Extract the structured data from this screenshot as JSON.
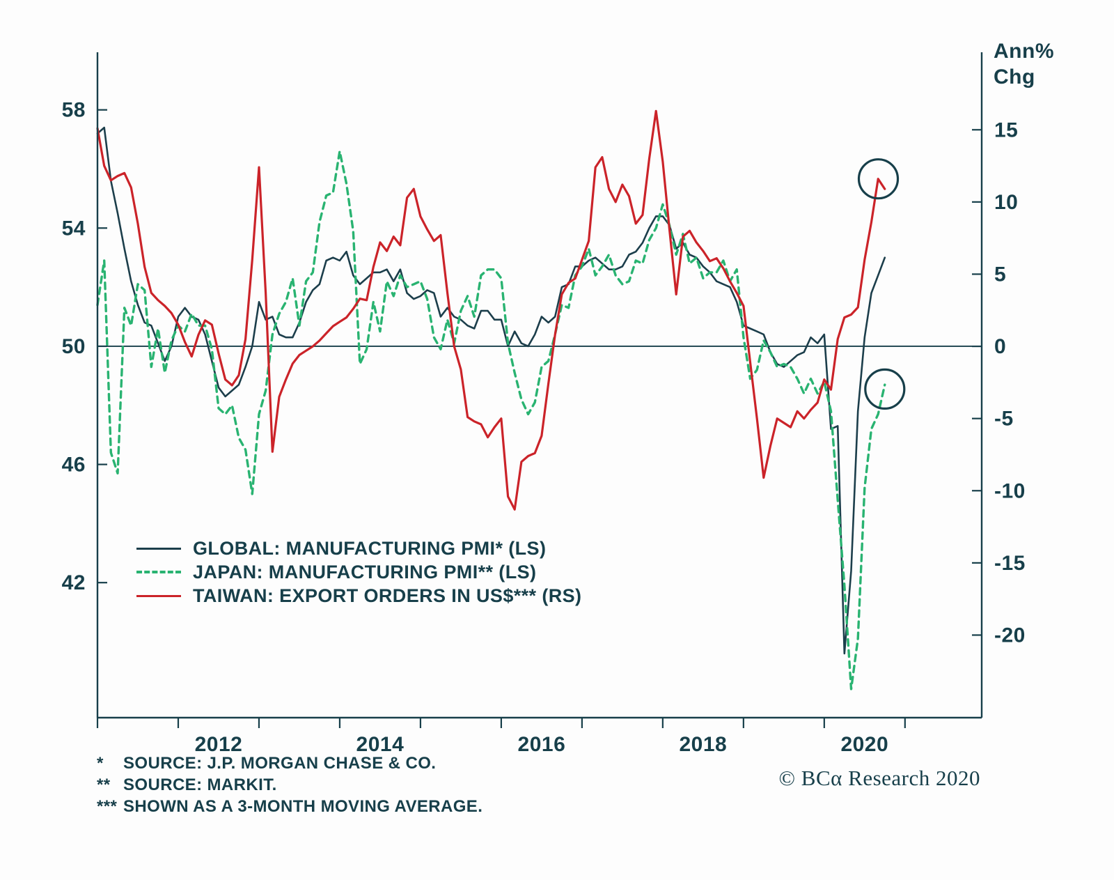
{
  "colors": {
    "ink": "#173f4a",
    "background": "#fdfdfd"
  },
  "right_axis_title": {
    "line1": "Ann%",
    "line2": "Chg"
  },
  "chart_data": {
    "type": "line",
    "title": "",
    "x_axis": {
      "range": [
        2011.0,
        2021.95
      ],
      "tick_years": [
        2011,
        2012,
        2013,
        2014,
        2015,
        2016,
        2017,
        2018,
        2019,
        2020,
        2021
      ],
      "label_years": [
        "2012",
        "2014",
        "2016",
        "2018",
        "2020"
      ]
    },
    "left_axis": {
      "unit": "PMI index level",
      "ticks": [
        58,
        54,
        50,
        46,
        42
      ],
      "range": [
        37.43,
        59.95
      ],
      "zero_reference_value": 50
    },
    "right_axis": {
      "unit": "Ann% Chg",
      "ticks": [
        15,
        10,
        5,
        0,
        -5,
        -10,
        -15,
        -20
      ],
      "range": [
        -25.72,
        20.37
      ]
    },
    "grid": "off",
    "legend_position": "inside-lower-left",
    "series": [
      {
        "id": "global",
        "name": "GLOBAL: MANUFACTURING PMI* (LS)",
        "axis": "left",
        "line_style": "solid",
        "color": "#1c3e4b",
        "width": 2.6,
        "start_year": 2011,
        "cadence": "monthly",
        "monthly_values": [
          57.2,
          57.4,
          55.6,
          54.5,
          53.3,
          52.2,
          51.4,
          50.8,
          50.7,
          50.1,
          49.5,
          50.0,
          51.0,
          51.3,
          51.0,
          50.9,
          50.4,
          49.5,
          48.6,
          48.3,
          48.5,
          48.7,
          49.3,
          50.0,
          51.5,
          50.9,
          51.0,
          50.4,
          50.3,
          50.3,
          50.8,
          51.5,
          51.9,
          52.1,
          52.9,
          53.0,
          52.9,
          53.2,
          52.4,
          52.1,
          52.3,
          52.5,
          52.5,
          52.6,
          52.2,
          52.6,
          51.8,
          51.6,
          51.7,
          51.9,
          51.8,
          51.0,
          51.3,
          51.0,
          50.9,
          50.7,
          50.6,
          51.2,
          51.2,
          50.9,
          50.9,
          50.0,
          50.5,
          50.1,
          50.0,
          50.4,
          51.0,
          50.8,
          51.0,
          52.0,
          52.1,
          52.7,
          52.7,
          52.9,
          53.0,
          52.8,
          52.6,
          52.6,
          52.7,
          53.1,
          53.2,
          53.5,
          54.0,
          54.4,
          54.4,
          54.1,
          53.3,
          53.5,
          53.1,
          53.0,
          52.7,
          52.5,
          52.2,
          52.1,
          52.0,
          51.5,
          50.7,
          50.6,
          50.5,
          50.4,
          49.8,
          49.4,
          49.3,
          49.5,
          49.7,
          49.8,
          50.3,
          50.1,
          50.4,
          47.2,
          47.3,
          39.6,
          42.4,
          47.8,
          50.3,
          51.8,
          52.4,
          53.0
        ]
      },
      {
        "id": "japan",
        "name": "JAPAN: MANUFACTURING PMI** (LS)",
        "axis": "left",
        "line_style": "dashed",
        "color": "#29b371",
        "width": 3.4,
        "start_year": 2011,
        "cadence": "monthly",
        "monthly_values": [
          51.4,
          52.9,
          46.4,
          45.7,
          51.3,
          50.7,
          52.1,
          51.9,
          49.3,
          50.6,
          49.1,
          50.2,
          50.7,
          50.5,
          51.1,
          50.7,
          50.7,
          49.9,
          47.9,
          47.7,
          48.0,
          46.9,
          46.5,
          45.0,
          47.7,
          48.5,
          50.4,
          51.1,
          51.5,
          52.3,
          50.7,
          52.2,
          52.5,
          54.2,
          55.1,
          55.2,
          56.6,
          55.5,
          53.9,
          49.4,
          49.9,
          51.5,
          50.5,
          52.2,
          51.7,
          52.4,
          52.0,
          52.1,
          52.2,
          51.6,
          50.3,
          49.9,
          50.9,
          50.1,
          51.2,
          51.7,
          51.0,
          52.4,
          52.6,
          52.6,
          52.3,
          50.1,
          49.1,
          48.2,
          47.7,
          48.1,
          49.3,
          49.5,
          50.4,
          51.4,
          51.3,
          52.4,
          52.7,
          53.3,
          52.4,
          52.7,
          53.1,
          52.4,
          52.1,
          52.2,
          52.9,
          52.8,
          53.6,
          54.0,
          54.8,
          54.1,
          53.1,
          53.8,
          52.8,
          53.0,
          52.3,
          52.5,
          52.5,
          52.9,
          52.2,
          52.6,
          50.3,
          48.9,
          49.2,
          50.2,
          49.8,
          49.3,
          49.4,
          49.3,
          48.9,
          48.4,
          48.9,
          48.4,
          48.8,
          47.8,
          44.8,
          41.9,
          38.4,
          40.1,
          45.2,
          47.2,
          47.7,
          48.7
        ]
      },
      {
        "id": "taiwan",
        "name": "TAIWAN: EXPORT ORDERS IN US$*** (RS)",
        "axis": "right",
        "line_style": "solid",
        "color": "#cb2329",
        "width": 3.2,
        "start_year": 2011,
        "cadence": "monthly",
        "monthly_values": [
          15.1,
          12.5,
          11.5,
          11.8,
          12.0,
          11.0,
          8.5,
          5.5,
          3.7,
          3.2,
          2.8,
          2.3,
          1.5,
          0.3,
          -0.7,
          0.8,
          1.8,
          1.5,
          -0.5,
          -2.3,
          -2.7,
          -2.0,
          0.5,
          6.0,
          12.4,
          3.7,
          -7.3,
          -3.5,
          -2.3,
          -1.2,
          -0.6,
          -0.3,
          0.0,
          0.4,
          0.9,
          1.4,
          1.7,
          2.0,
          2.6,
          3.3,
          3.2,
          5.5,
          7.2,
          6.6,
          7.6,
          7.0,
          10.3,
          10.9,
          9.0,
          8.1,
          7.3,
          7.7,
          3.7,
          0.0,
          -1.6,
          -4.9,
          -5.2,
          -5.4,
          -6.3,
          -5.6,
          -5.0,
          -10.4,
          -11.3,
          -8.0,
          -7.6,
          -7.4,
          -6.2,
          -2.6,
          0.8,
          3.6,
          4.4,
          4.7,
          6.0,
          7.3,
          12.4,
          13.1,
          10.9,
          10.0,
          11.2,
          10.4,
          8.5,
          9.1,
          13.0,
          16.3,
          12.8,
          8.1,
          3.6,
          7.6,
          8.0,
          7.2,
          6.6,
          5.9,
          6.1,
          5.4,
          4.5,
          3.7,
          2.8,
          -1.1,
          -5.0,
          -9.1,
          -6.9,
          -5.0,
          -5.3,
          -5.6,
          -4.5,
          -5.0,
          -4.4,
          -3.9,
          -2.3,
          -3.0,
          0.5,
          2.0,
          2.2,
          2.7,
          6.0,
          8.6,
          11.6,
          10.9
        ]
      }
    ],
    "annotations": [
      {
        "shape": "circle",
        "series": "taiwan",
        "axis": "right",
        "year": 2020.67,
        "value": 11.6
      },
      {
        "shape": "circle",
        "series": "japan",
        "axis": "left",
        "year": 2020.75,
        "value": 48.55
      }
    ]
  },
  "footnotes": [
    {
      "marker": "*",
      "text": "SOURCE: J.P. MORGAN CHASE & CO."
    },
    {
      "marker": "**",
      "text": "SOURCE: MARKIT."
    },
    {
      "marker": "***",
      "text": "SHOWN AS A 3-MONTH MOVING AVERAGE."
    }
  ],
  "copyright": "© BCα Research 2020"
}
